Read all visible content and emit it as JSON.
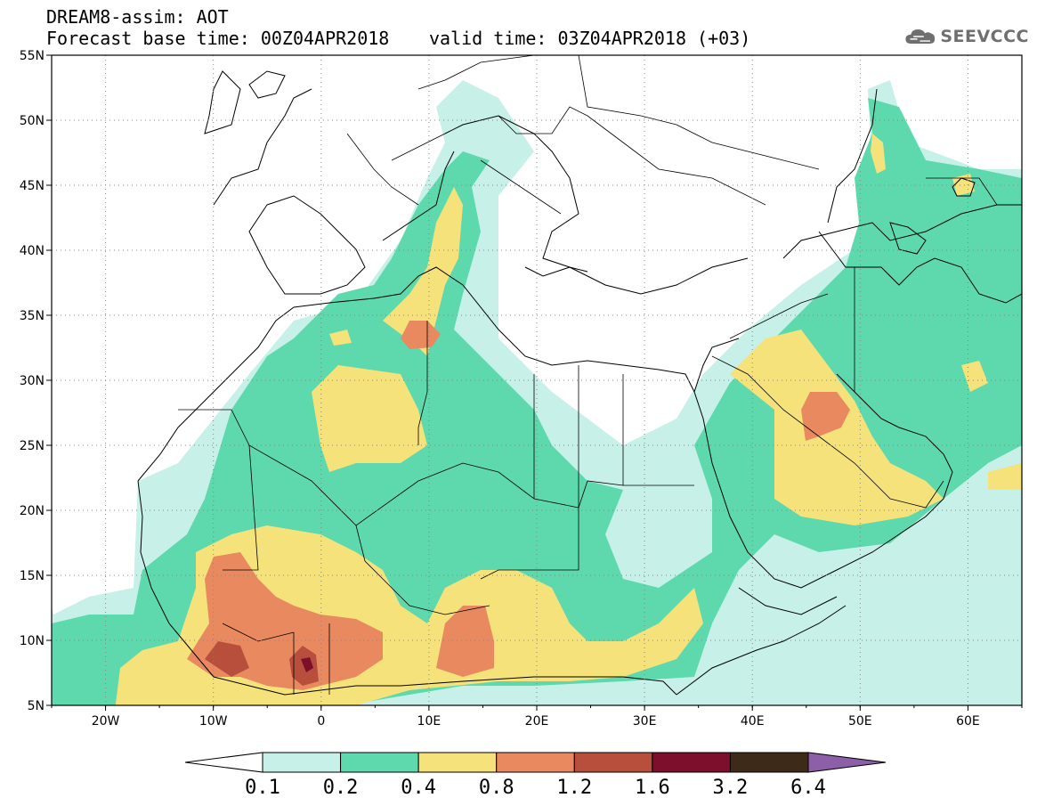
{
  "header": {
    "title": "DREAM8-assim: AOT",
    "base_time": "Forecast base time: 00Z04APR2018",
    "valid_time": "valid time: 03Z04APR2018 (+03)"
  },
  "logo": {
    "text": "SEEVCCC",
    "icon": "cloud-icon"
  },
  "map": {
    "lat_labels": [
      "55N",
      "50N",
      "45N",
      "40N",
      "35N",
      "30N",
      "25N",
      "20N",
      "15N",
      "10N",
      "5N"
    ],
    "lon_labels": [
      "20W",
      "10W",
      "0",
      "10E",
      "20E",
      "30E",
      "40E",
      "50E",
      "60E"
    ],
    "lon_range": [
      -25,
      65
    ],
    "lat_range": [
      5,
      55
    ],
    "grid": "dotted"
  },
  "colorbar": {
    "labels": [
      "0.1",
      "0.2",
      "0.4",
      "0.8",
      "1.2",
      "1.6",
      "3.2",
      "6.4"
    ],
    "colors": [
      "#c6f0e8",
      "#5ed8ad",
      "#f5e27a",
      "#e9895f",
      "#b84f3d",
      "#7e0f2c",
      "#3e2a19"
    ],
    "under_color": "#ffffff",
    "over_color": "#8d5fa8"
  }
}
